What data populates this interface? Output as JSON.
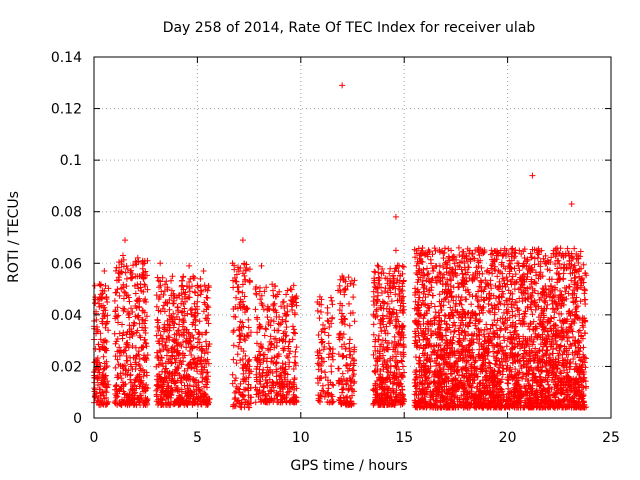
{
  "chart_data": {
    "type": "scatter",
    "title": "Day 258 of 2014, Rate Of TEC Index for receiver ulab",
    "xlabel": "GPS time / hours",
    "ylabel": "ROTI / TECUs",
    "xlim": [
      0,
      25
    ],
    "ylim": [
      0,
      0.14
    ],
    "xticks": [
      0,
      5,
      10,
      15,
      20,
      25
    ],
    "xtick_labels": [
      "0",
      "5",
      "10",
      "15",
      "20",
      "25"
    ],
    "yticks": [
      0,
      0.02,
      0.04,
      0.06,
      0.08,
      0.1,
      0.12,
      0.14
    ],
    "ytick_labels": [
      "0",
      "0.02",
      "0.04",
      "0.06",
      "0.08",
      "0.1",
      "0.12",
      "0.14"
    ],
    "grid": true,
    "marker": "plus",
    "color": "#ff0000",
    "dense_coverage": [
      {
        "x_range": [
          0.0,
          0.7
        ],
        "y_range": [
          0.005,
          0.052
        ],
        "density": 4
      },
      {
        "x_range": [
          1.0,
          2.6
        ],
        "y_range": [
          0.005,
          0.063
        ],
        "density": 4
      },
      {
        "x_range": [
          3.0,
          5.6
        ],
        "y_range": [
          0.005,
          0.055
        ],
        "density": 4
      },
      {
        "x_range": [
          6.7,
          7.6
        ],
        "y_range": [
          0.004,
          0.06
        ],
        "density": 3
      },
      {
        "x_range": [
          7.8,
          9.8
        ],
        "y_range": [
          0.006,
          0.052
        ],
        "density": 3
      },
      {
        "x_range": [
          10.8,
          11.6
        ],
        "y_range": [
          0.006,
          0.048
        ],
        "density": 2
      },
      {
        "x_range": [
          11.8,
          12.6
        ],
        "y_range": [
          0.005,
          0.055
        ],
        "density": 3
      },
      {
        "x_range": [
          13.5,
          15.0
        ],
        "y_range": [
          0.005,
          0.06
        ],
        "density": 5
      },
      {
        "x_range": [
          15.5,
          23.8
        ],
        "y_range": [
          0.004,
          0.066
        ],
        "density": 6
      }
    ],
    "series": [
      {
        "values": [
          [
            12.0,
            0.129
          ],
          [
            21.2,
            0.094
          ],
          [
            23.1,
            0.083
          ],
          [
            14.6,
            0.078
          ],
          [
            1.5,
            0.069
          ],
          [
            7.2,
            0.069
          ],
          [
            18.6,
            0.066
          ],
          [
            14.6,
            0.065
          ],
          [
            15.8,
            0.064
          ],
          [
            1.4,
            0.063
          ],
          [
            16.9,
            0.062
          ],
          [
            23.0,
            0.061
          ],
          [
            3.2,
            0.06
          ],
          [
            6.7,
            0.06
          ],
          [
            8.1,
            0.059
          ],
          [
            17.6,
            0.059
          ],
          [
            4.6,
            0.059
          ],
          [
            19.2,
            0.058
          ],
          [
            22.4,
            0.058
          ],
          [
            0.5,
            0.057
          ],
          [
            5.3,
            0.057
          ],
          [
            16.4,
            0.057
          ],
          [
            20.1,
            0.056
          ],
          [
            13.9,
            0.056
          ],
          [
            12.0,
            0.055
          ],
          [
            2.2,
            0.055
          ],
          [
            21.7,
            0.055
          ],
          [
            9.5,
            0.05
          ],
          [
            11.0,
            0.046
          ],
          [
            10.8,
            0.045
          ]
        ]
      }
    ]
  }
}
